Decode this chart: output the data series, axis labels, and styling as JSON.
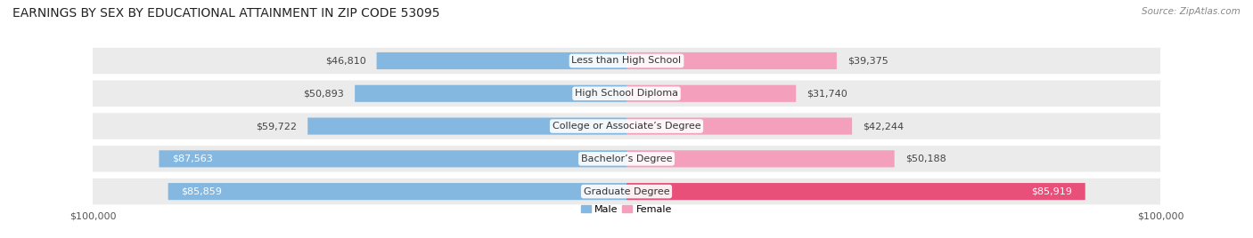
{
  "title": "EARNINGS BY SEX BY EDUCATIONAL ATTAINMENT IN ZIP CODE 53095",
  "source": "Source: ZipAtlas.com",
  "categories": [
    "Less than High School",
    "High School Diploma",
    "College or Associate’s Degree",
    "Bachelor’s Degree",
    "Graduate Degree"
  ],
  "male_values": [
    46810,
    50893,
    59722,
    87563,
    85859
  ],
  "female_values": [
    39375,
    31740,
    42244,
    50188,
    85919
  ],
  "male_color": "#85b8e0",
  "female_color_normal": "#f4a0bc",
  "female_color_last": "#e8507a",
  "row_bg_color": "#ebebeb",
  "max_value": 100000,
  "title_fontsize": 10,
  "label_fontsize": 8,
  "value_fontsize": 8,
  "tick_fontsize": 8,
  "background_color": "#ffffff"
}
